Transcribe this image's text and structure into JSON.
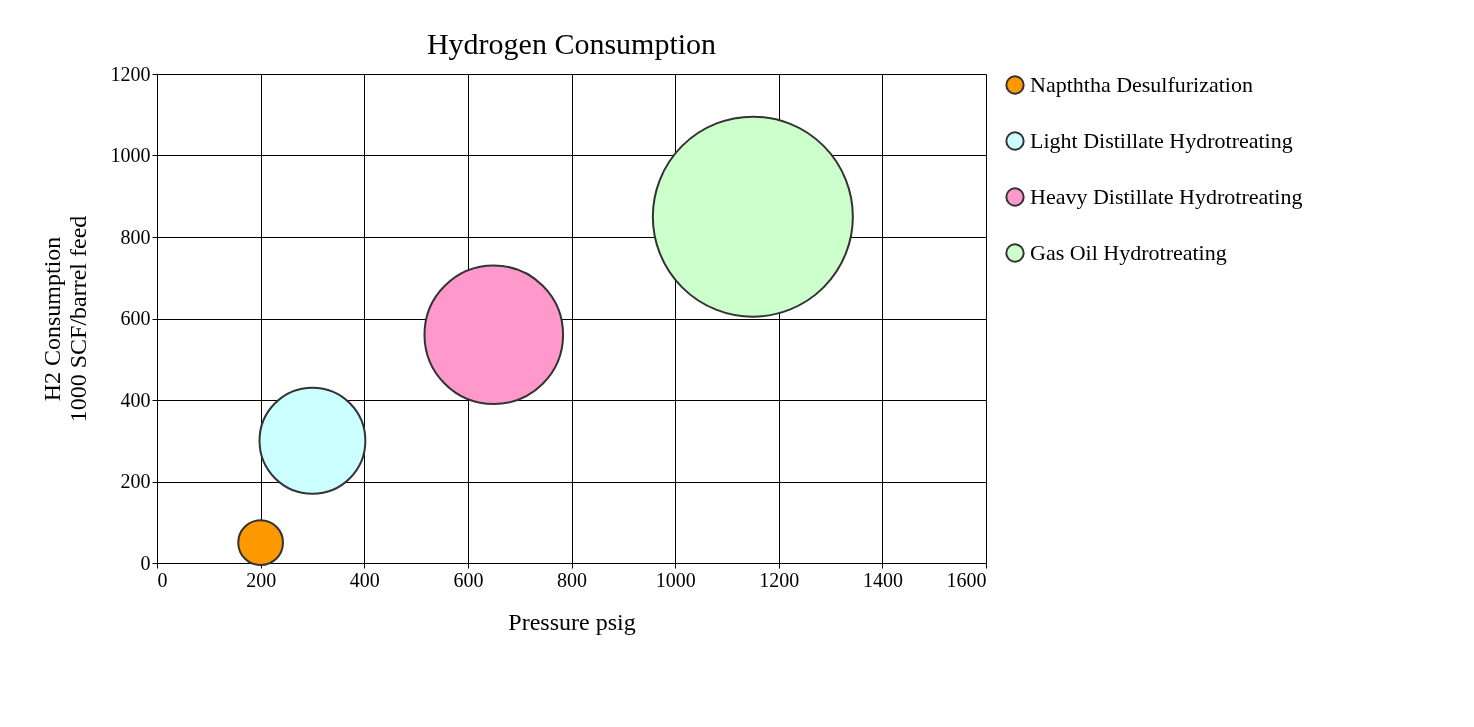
{
  "chart_data": {
    "type": "bubble",
    "title": "Hydrogen Consumption",
    "xlabel": "Pressure psig",
    "ylabel": "H2 Consumption\n1000 SCF/barrel feed",
    "xlim": [
      0,
      1600
    ],
    "xticks": [
      0,
      200,
      400,
      600,
      800,
      1000,
      1200,
      1400,
      1600
    ],
    "ylim": [
      0,
      1200
    ],
    "yticks": [
      0,
      200,
      400,
      600,
      800,
      1000,
      1200
    ],
    "grid": true,
    "legend": "right",
    "series": [
      {
        "name": "Napththa Desulfurization",
        "color": "#ff9900",
        "x": [
          200
        ],
        "values": [
          50
        ],
        "sizes": [
          0.05
        ]
      },
      {
        "name": "Light Distillate Hydrotreating",
        "color": "#ccffff",
        "x": [
          300
        ],
        "values": [
          300
        ],
        "sizes": [
          0.28
        ]
      },
      {
        "name": "Heavy Distillate Hydrotreating",
        "color": "#ff99cc",
        "x": [
          650
        ],
        "values": [
          560
        ],
        "sizes": [
          0.48
        ]
      },
      {
        "name": "Gas Oil Hydrotreating",
        "color": "#ccffcc",
        "x": [
          1150
        ],
        "values": [
          850
        ],
        "sizes": [
          1
        ]
      }
    ]
  }
}
